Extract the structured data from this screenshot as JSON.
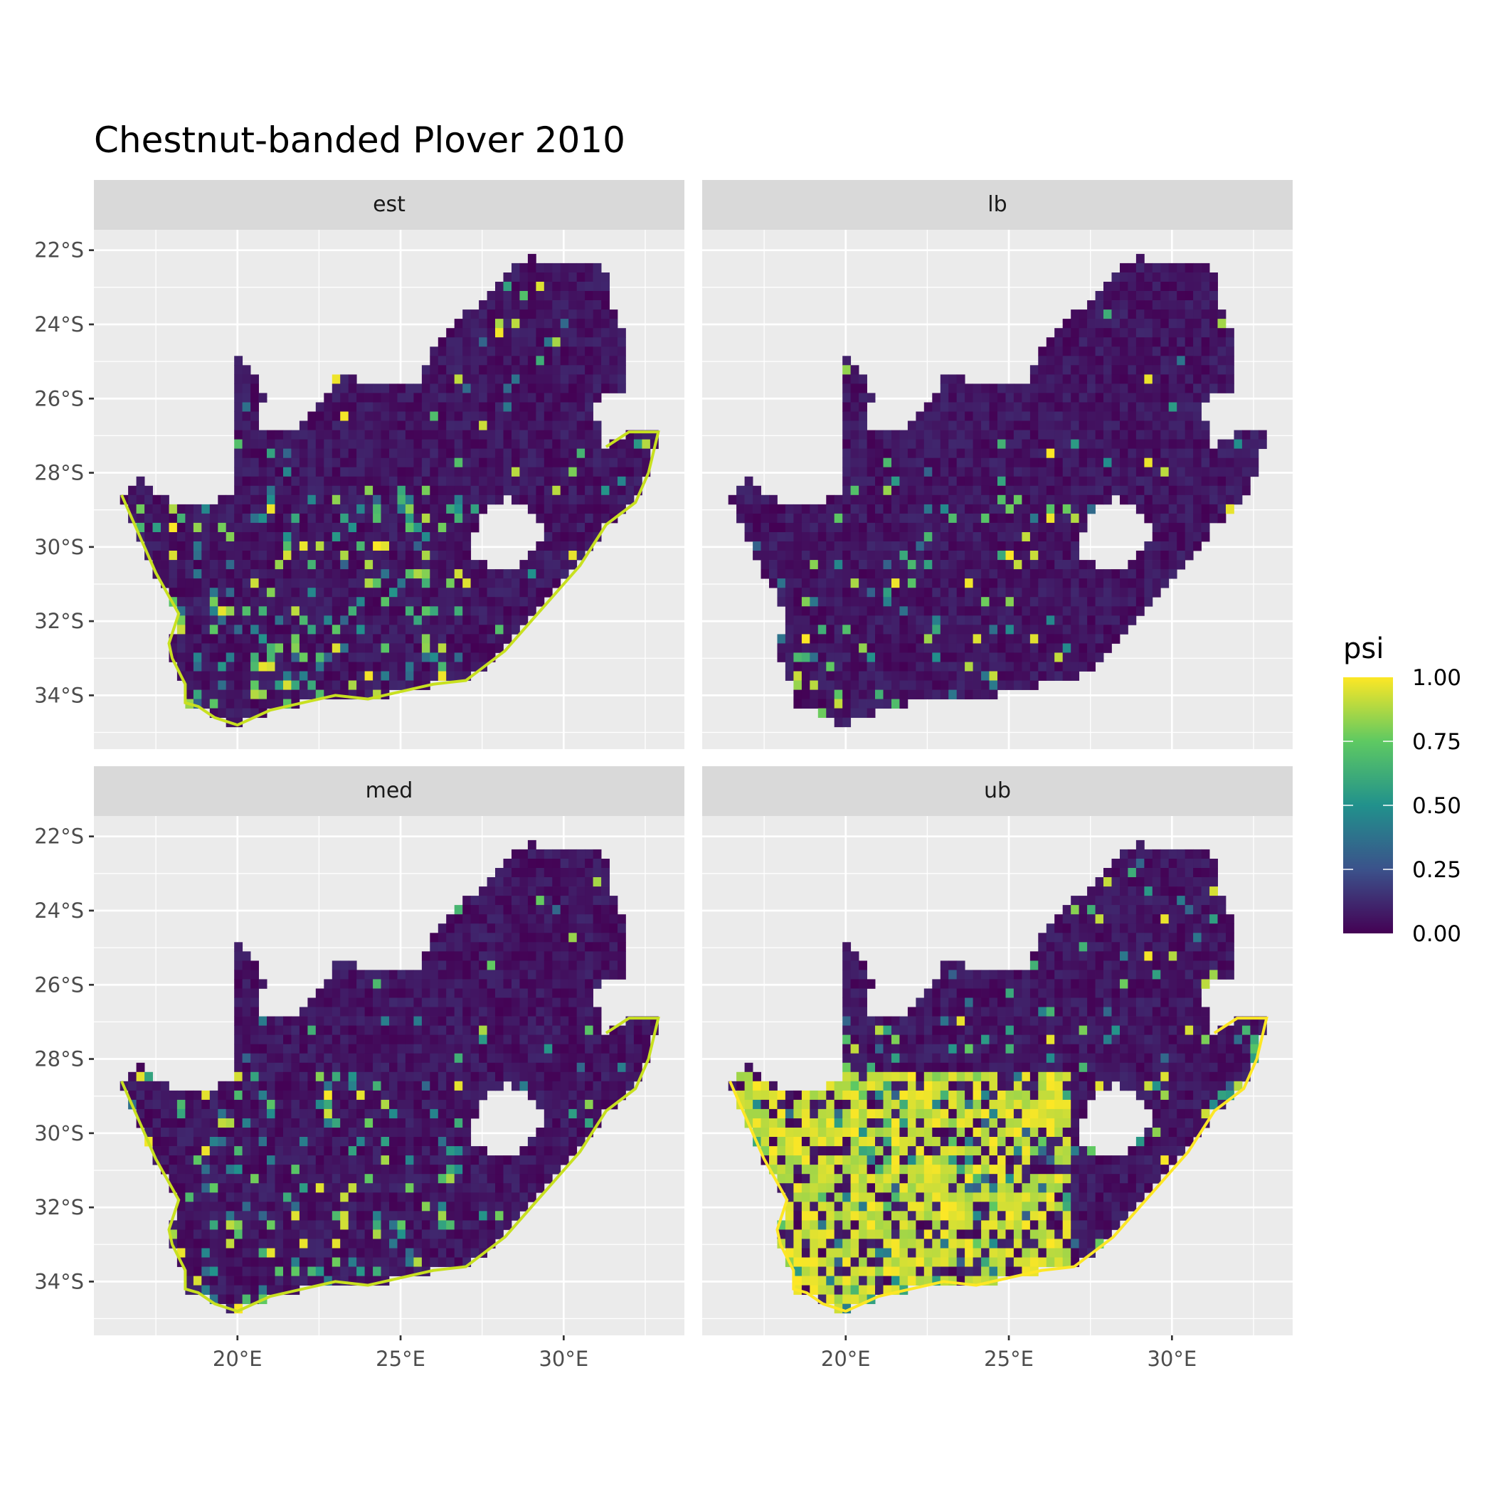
{
  "chart_data": {
    "type": "heatmap",
    "title": "Chestnut-banded Plover 2010",
    "facets": [
      "est",
      "lb",
      "med",
      "ub"
    ],
    "facet_layout": "2x2",
    "x_ticks": [
      "20°E",
      "25°E",
      "30°E"
    ],
    "x_tick_values": [
      20,
      25,
      30
    ],
    "y_ticks": [
      "22°S",
      "24°S",
      "26°S",
      "28°S",
      "30°S",
      "32°S",
      "34°S"
    ],
    "y_tick_values": [
      -22,
      -24,
      -26,
      -28,
      -30,
      -32,
      -34
    ],
    "xlim": [
      15.6,
      33.7
    ],
    "ylim": [
      -35.45,
      -21.45
    ],
    "grid": true,
    "legend": {
      "title": "psi",
      "position": "right",
      "labels": [
        "1.00",
        "0.75",
        "0.50",
        "0.25",
        "0.00"
      ],
      "range": [
        0,
        1
      ],
      "colorscale": "viridis",
      "colors": [
        "#440154",
        "#3b528b",
        "#21918c",
        "#5ec962",
        "#fde725"
      ]
    },
    "region": "South Africa"
  }
}
